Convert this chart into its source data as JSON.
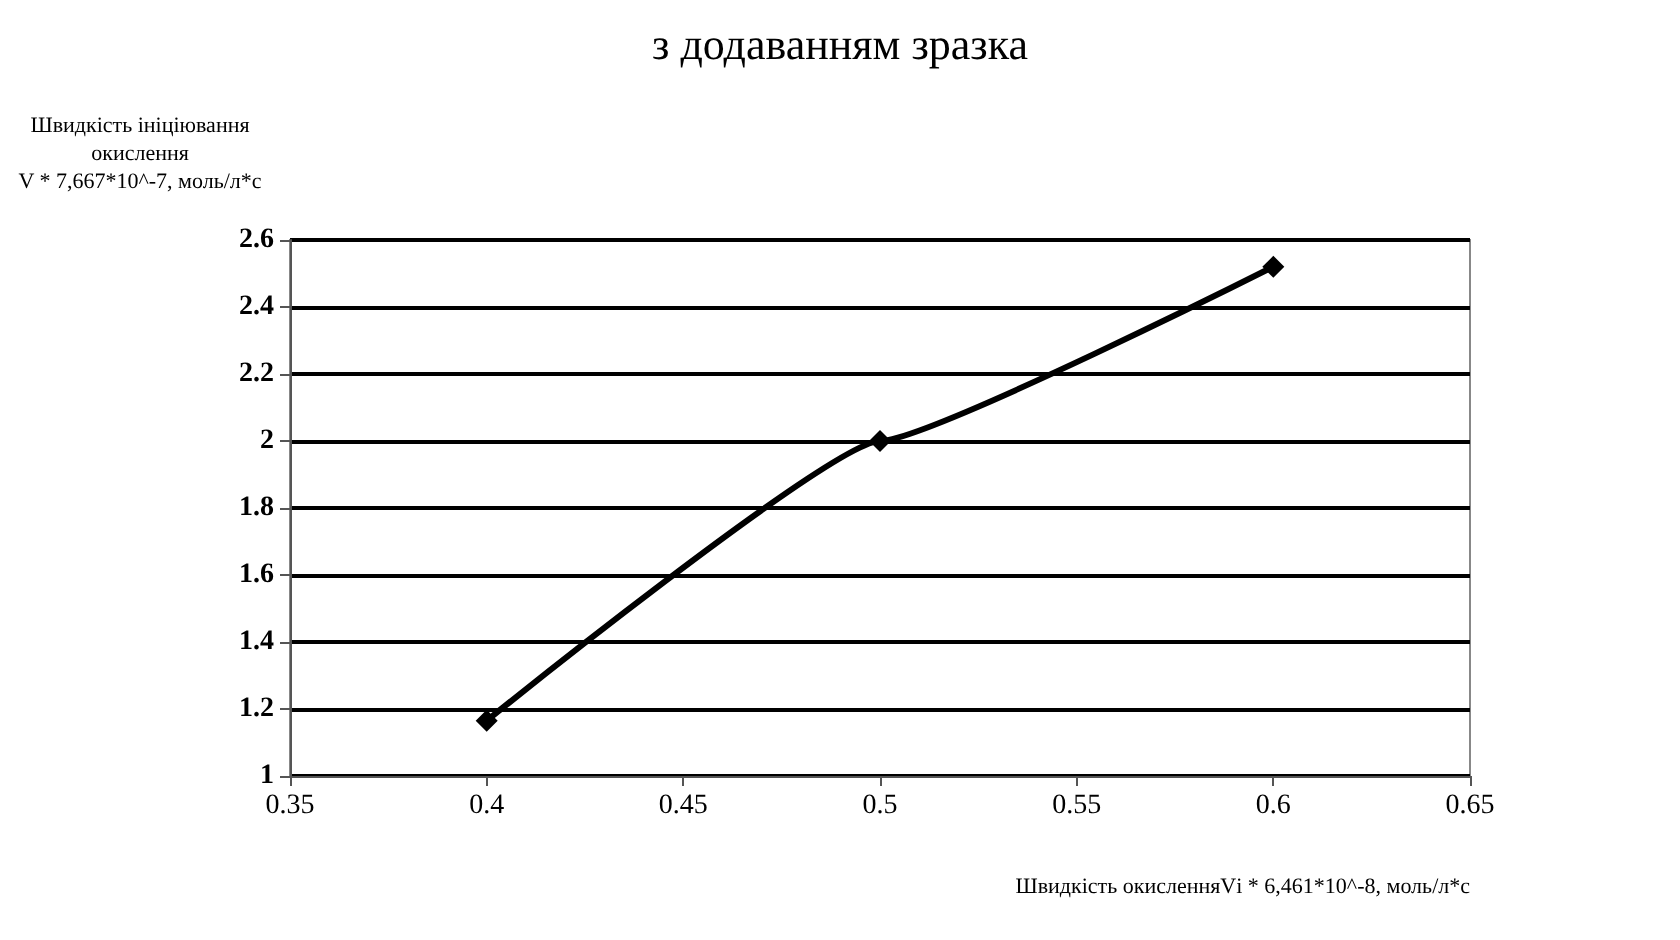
{
  "chart_data": {
    "type": "line",
    "title": "з додаванням зразка",
    "ylabel": "Швидкість ініціювання\nокислення\nV * 7,667*10^-7, моль/л*с",
    "xlabel": "Швидкість окисленняVі * 6,461*10^-8, моль/л*с",
    "x": [
      0.4,
      0.5,
      0.6
    ],
    "series": [
      {
        "color": "#000000",
        "values": [
          1.165,
          2.0,
          2.52
        ]
      }
    ],
    "xlim": [
      0.35,
      0.65
    ],
    "xticks": [
      0.35,
      0.4,
      0.45,
      0.5,
      0.55,
      0.6,
      0.65
    ],
    "ylim": [
      1,
      2.6
    ],
    "yticks": [
      1,
      1.2,
      1.4,
      1.6,
      1.8,
      2,
      2.2,
      2.4,
      2.6
    ],
    "grid": "y",
    "marker": "diamond",
    "line_style": "solid"
  }
}
